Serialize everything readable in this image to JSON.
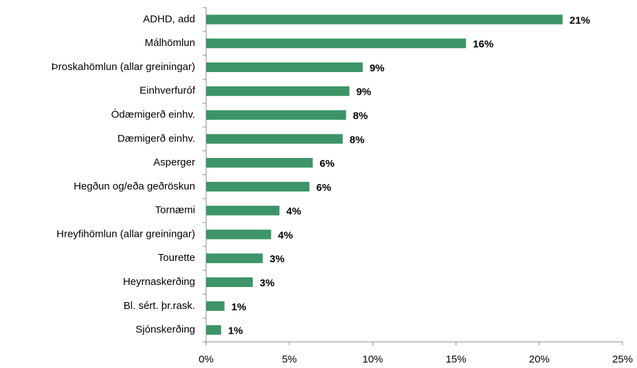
{
  "chart_data": {
    "type": "bar",
    "orientation": "horizontal",
    "categories": [
      "ADHD, add",
      "Málhömlun",
      "Þroskahömlun (allar greiningar)",
      "Einhverfuróf",
      "Ódæmigerð einhv.",
      "Dæmigerð einhv.",
      "Asperger",
      "Hegðun og/eða geðröskun",
      "Tornæmi",
      "Hreyfihömlun (allar greiningar)",
      "Tourette",
      "Heyrnaskerðing",
      "Bl. sért. þr.rask.",
      "Sjónskerðing"
    ],
    "values": [
      21.4,
      15.6,
      9.4,
      8.6,
      8.4,
      8.2,
      6.4,
      6.2,
      4.4,
      3.9,
      3.4,
      2.8,
      1.1,
      0.9
    ],
    "value_labels": [
      "21%",
      "16%",
      "9%",
      "9%",
      "8%",
      "8%",
      "6%",
      "6%",
      "4%",
      "4%",
      "3%",
      "3%",
      "1%",
      "1%"
    ],
    "color": "#3d9466",
    "xlim": [
      0,
      25
    ],
    "xticks": [
      {
        "value": 0,
        "label": "0%"
      },
      {
        "value": 5,
        "label": "5%"
      },
      {
        "value": 10,
        "label": "10%"
      },
      {
        "value": 15,
        "label": "15%"
      },
      {
        "value": 20,
        "label": "20%"
      },
      {
        "value": 25,
        "label": "25%"
      }
    ],
    "grid": false
  }
}
